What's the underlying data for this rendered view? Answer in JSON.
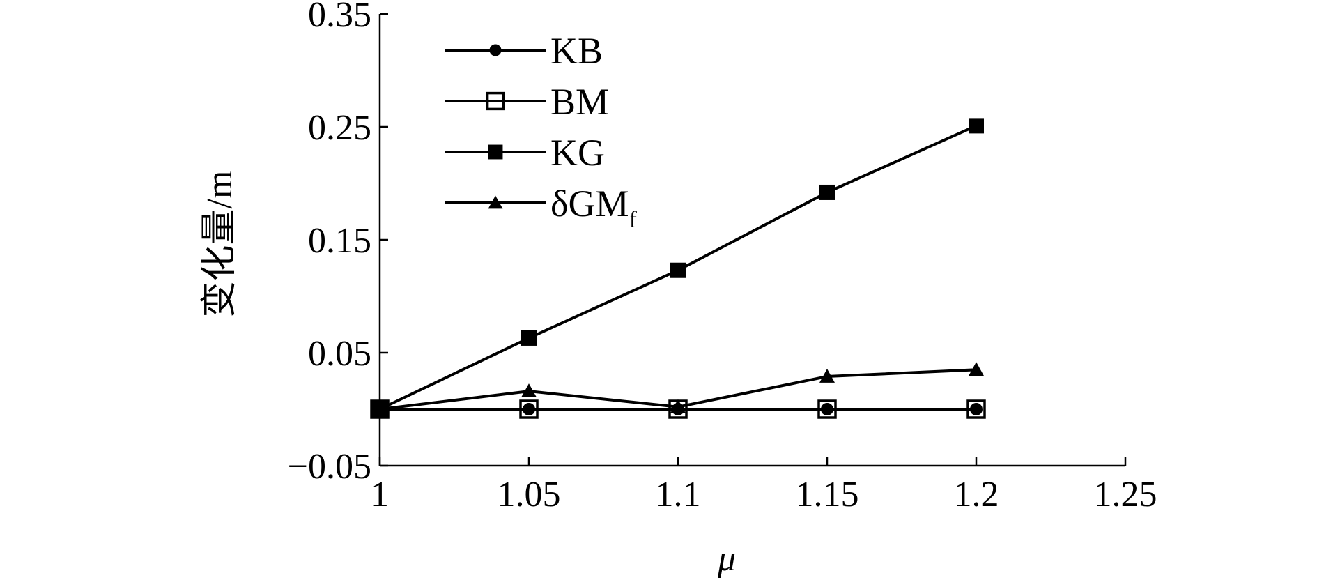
{
  "chart_data": {
    "type": "line",
    "title": "",
    "xlabel": "μ",
    "ylabel": "变化量/m",
    "xlim": [
      1,
      1.25
    ],
    "ylim": [
      -0.05,
      0.35
    ],
    "xticks": [
      1,
      1.05,
      1.1,
      1.15,
      1.2,
      1.25
    ],
    "xtick_labels": [
      "1",
      "1.05",
      "1.1",
      "1.15",
      "1.2",
      "1.25"
    ],
    "yticks": [
      -0.05,
      0.05,
      0.15,
      0.25,
      0.35
    ],
    "ytick_labels": [
      "−0.05",
      "0.05",
      "0.15",
      "0.25",
      "0.35"
    ],
    "grid": false,
    "legend_position": "top-left",
    "line_color": "#000000",
    "x": [
      1,
      1.05,
      1.1,
      1.15,
      1.2
    ],
    "series": [
      {
        "name": "KB",
        "marker": "filled-circle",
        "values": [
          0,
          0,
          0,
          0,
          0
        ]
      },
      {
        "name": "BM",
        "marker": "open-square",
        "values": [
          0,
          0,
          0,
          0,
          0
        ]
      },
      {
        "name": "KG",
        "marker": "filled-square",
        "values": [
          0,
          0.063,
          0.123,
          0.192,
          0.251
        ]
      },
      {
        "name": "δGM",
        "subscript": "f",
        "marker": "filled-triangle",
        "values": [
          0,
          0.016,
          0.002,
          0.029,
          0.035
        ]
      }
    ]
  }
}
